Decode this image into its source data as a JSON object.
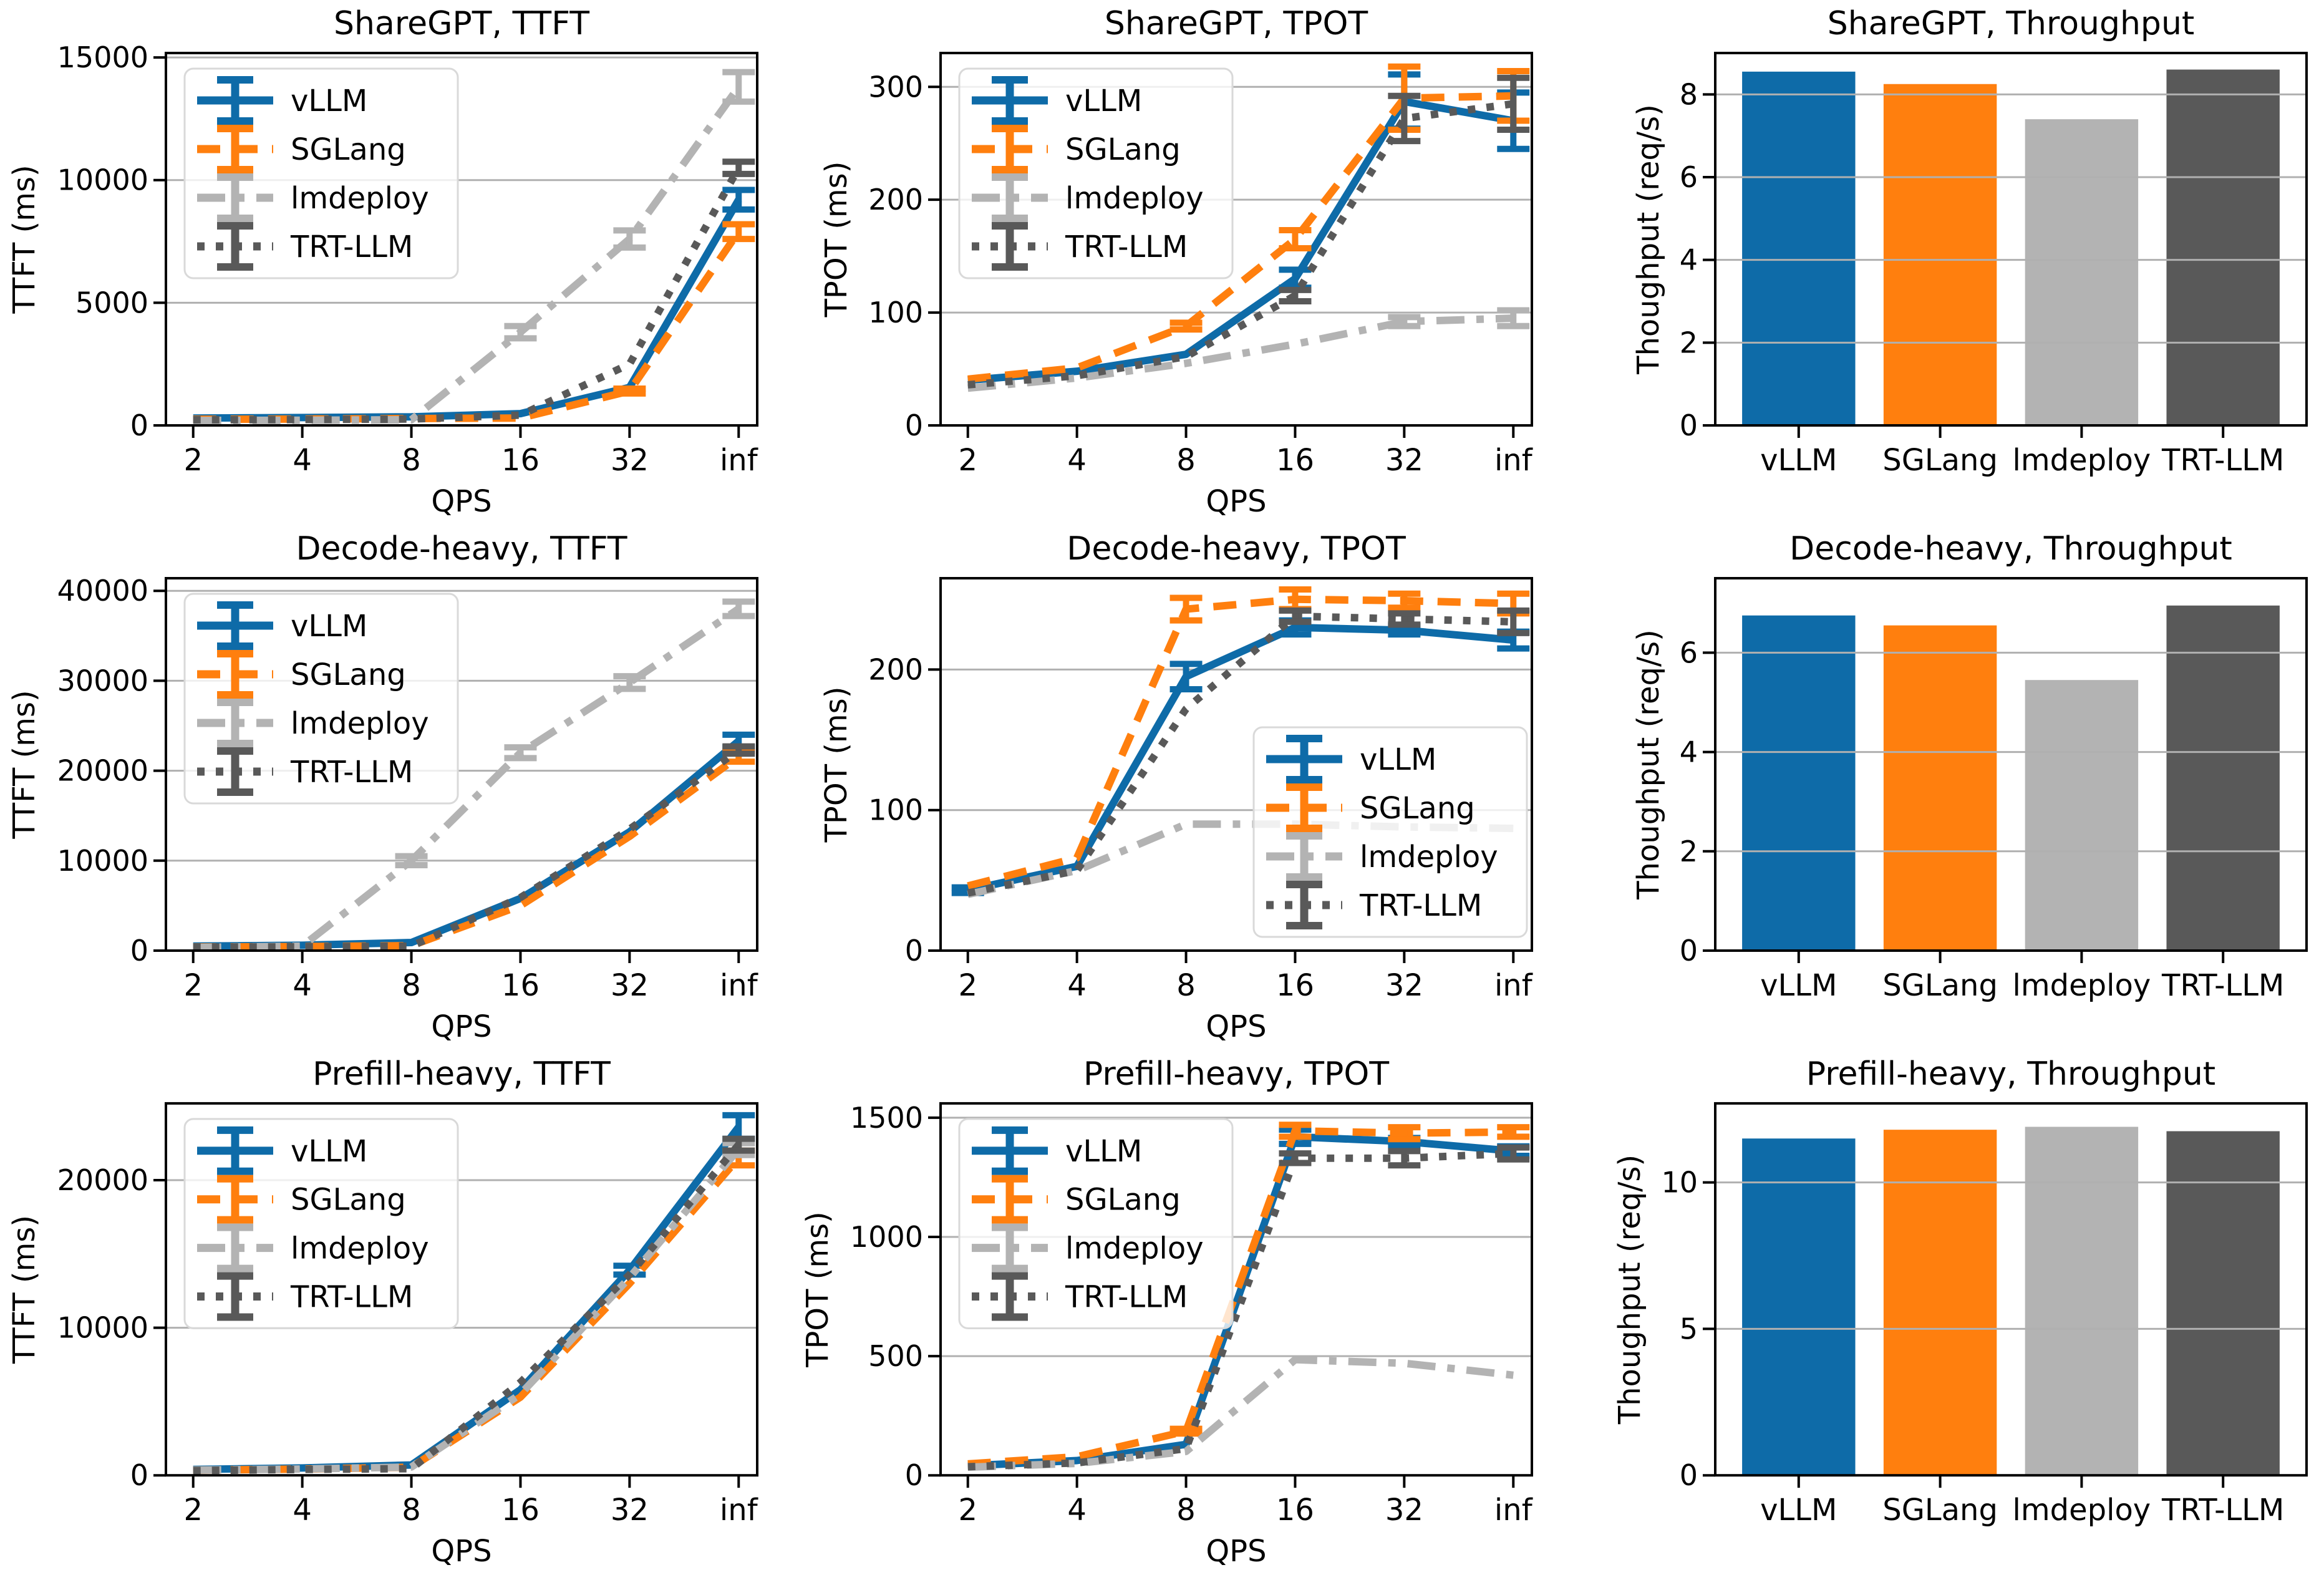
{
  "figure": {
    "background": "#ffffff",
    "grid_color": "#b0b0b0",
    "axis_color": "#000000",
    "legend_border_color": "#d9d9d9",
    "legend_fill": "#ffffff"
  },
  "frameworks": [
    {
      "name": "vLLM",
      "color": "#0e6ba8",
      "dash": "solid"
    },
    {
      "name": "SGLang",
      "color": "#ff7f0e",
      "dash": "dashed"
    },
    {
      "name": "lmdeploy",
      "color": "#b3b3b3",
      "dash": "dashdot"
    },
    {
      "name": "TRT-LLM",
      "color": "#595959",
      "dash": "dotted"
    }
  ],
  "chart_data": [
    {
      "id": "sharegpt-ttft",
      "type": "line",
      "title": "ShareGPT, TTFT",
      "xlabel": "QPS",
      "ylabel": "TTFT (ms)",
      "x_categories": [
        "2",
        "4",
        "8",
        "16",
        "32",
        "inf"
      ],
      "yticks": [
        0,
        5000,
        10000,
        15000
      ],
      "ylim": [
        0,
        15180
      ],
      "grid": true,
      "legend_loc": "upper-left",
      "series": [
        {
          "name": "vLLM",
          "color": "#0e6ba8",
          "dash": "solid",
          "values": [
            300,
            320,
            350,
            480,
            1550,
            9200
          ],
          "err": [
            0,
            0,
            0,
            0,
            0,
            400
          ]
        },
        {
          "name": "SGLang",
          "color": "#ff7f0e",
          "dash": "dashed",
          "values": [
            250,
            260,
            280,
            300,
            1400,
            7900
          ],
          "err": [
            0,
            0,
            0,
            0,
            100,
            300
          ]
        },
        {
          "name": "lmdeploy",
          "color": "#b3b3b3",
          "dash": "dashdot",
          "values": [
            200,
            210,
            230,
            3800,
            7600,
            13800
          ],
          "err": [
            0,
            0,
            0,
            250,
            350,
            600
          ]
        },
        {
          "name": "TRT-LLM",
          "color": "#595959",
          "dash": "dotted",
          "values": [
            230,
            240,
            260,
            420,
            2500,
            10500
          ],
          "err": [
            0,
            0,
            0,
            0,
            0,
            250
          ]
        }
      ]
    },
    {
      "id": "sharegpt-tpot",
      "type": "line",
      "title": "ShareGPT, TPOT",
      "xlabel": "QPS",
      "ylabel": "TPOT (ms)",
      "x_categories": [
        "2",
        "4",
        "8",
        "16",
        "32",
        "inf"
      ],
      "yticks": [
        0,
        100,
        200,
        300
      ],
      "ylim": [
        0,
        330
      ],
      "grid": true,
      "legend_loc": "upper-left",
      "series": [
        {
          "name": "vLLM",
          "color": "#0e6ba8",
          "dash": "solid",
          "values": [
            40,
            48,
            63,
            130,
            287,
            270
          ],
          "err": [
            0,
            0,
            0,
            8,
            24,
            25
          ]
        },
        {
          "name": "SGLang",
          "color": "#ff7f0e",
          "dash": "dashed",
          "values": [
            41,
            51,
            88,
            165,
            290,
            292
          ],
          "err": [
            0,
            0,
            3,
            8,
            28,
            22
          ]
        },
        {
          "name": "lmdeploy",
          "color": "#b3b3b3",
          "dash": "dashdot",
          "values": [
            33,
            42,
            55,
            72,
            92,
            95
          ],
          "err": [
            0,
            0,
            0,
            0,
            4,
            7
          ]
        },
        {
          "name": "TRT-LLM",
          "color": "#595959",
          "dash": "dotted",
          "values": [
            36,
            44,
            61,
            115,
            272,
            285
          ],
          "err": [
            0,
            0,
            0,
            5,
            20,
            23
          ]
        }
      ]
    },
    {
      "id": "sharegpt-throughput",
      "type": "bar",
      "title": "ShareGPT, Throughput",
      "ylabel": "Thoughput (req/s)",
      "categories": [
        "vLLM",
        "SGLang",
        "lmdeploy",
        "TRT-LLM"
      ],
      "values": [
        8.55,
        8.25,
        7.4,
        8.6
      ],
      "colors": [
        "#0e6ba8",
        "#ff7f0e",
        "#b3b3b3",
        "#595959"
      ],
      "yticks": [
        0,
        2,
        4,
        6,
        8
      ],
      "ylim": [
        0,
        9.0
      ],
      "grid": true
    },
    {
      "id": "decode-heavy-ttft",
      "type": "line",
      "title": "Decode-heavy, TTFT",
      "xlabel": "QPS",
      "ylabel": "TTFT (ms)",
      "x_categories": [
        "2",
        "4",
        "8",
        "16",
        "32",
        "inf"
      ],
      "yticks": [
        0,
        10000,
        20000,
        30000,
        40000
      ],
      "ylim": [
        0,
        41400
      ],
      "grid": true,
      "legend_loc": "upper-left",
      "series": [
        {
          "name": "vLLM",
          "color": "#0e6ba8",
          "dash": "solid",
          "values": [
            500,
            600,
            900,
            5800,
            13200,
            23300
          ],
          "err": [
            0,
            0,
            0,
            0,
            0,
            700
          ]
        },
        {
          "name": "SGLang",
          "color": "#ff7f0e",
          "dash": "dashed",
          "values": [
            400,
            450,
            550,
            5000,
            12700,
            21600
          ],
          "err": [
            0,
            0,
            0,
            0,
            0,
            600
          ]
        },
        {
          "name": "lmdeploy",
          "color": "#b3b3b3",
          "dash": "dashdot",
          "values": [
            350,
            500,
            10000,
            22000,
            29800,
            38000
          ],
          "err": [
            0,
            0,
            500,
            600,
            700,
            800
          ]
        },
        {
          "name": "TRT-LLM",
          "color": "#595959",
          "dash": "dotted",
          "values": [
            380,
            420,
            500,
            5900,
            13500,
            22300
          ],
          "err": [
            0,
            0,
            0,
            0,
            0,
            400
          ]
        }
      ]
    },
    {
      "id": "decode-heavy-tpot",
      "type": "line",
      "title": "Decode-heavy, TPOT",
      "xlabel": "QPS",
      "ylabel": "TPOT (ms)",
      "x_categories": [
        "2",
        "4",
        "8",
        "16",
        "32",
        "inf"
      ],
      "yticks": [
        0,
        100,
        200
      ],
      "ylim": [
        0,
        265
      ],
      "grid": true,
      "legend_loc": "lower-right",
      "series": [
        {
          "name": "vLLM",
          "color": "#0e6ba8",
          "dash": "solid",
          "values": [
            43,
            60,
            195,
            230,
            228,
            221
          ],
          "err": [
            2,
            0,
            9,
            5,
            3,
            6
          ]
        },
        {
          "name": "SGLang",
          "color": "#ff7f0e",
          "dash": "dashed",
          "values": [
            46,
            66,
            243,
            250,
            249,
            247
          ],
          "err": [
            0,
            0,
            8,
            7,
            5,
            7
          ]
        },
        {
          "name": "lmdeploy",
          "color": "#b3b3b3",
          "dash": "dashdot",
          "values": [
            40,
            57,
            90,
            90,
            88,
            87
          ],
          "err": [
            0,
            0,
            0,
            0,
            0,
            0
          ]
        },
        {
          "name": "TRT-LLM",
          "color": "#595959",
          "dash": "dotted",
          "values": [
            41,
            57,
            172,
            238,
            236,
            234
          ],
          "err": [
            0,
            0,
            0,
            4,
            4,
            8
          ]
        }
      ]
    },
    {
      "id": "decode-heavy-throughput",
      "type": "bar",
      "title": "Decode-heavy, Throughput",
      "ylabel": "Thoughput (req/s)",
      "categories": [
        "vLLM",
        "SGLang",
        "lmdeploy",
        "TRT-LLM"
      ],
      "values": [
        6.75,
        6.55,
        5.45,
        6.95
      ],
      "colors": [
        "#0e6ba8",
        "#ff7f0e",
        "#b3b3b3",
        "#595959"
      ],
      "yticks": [
        0,
        2,
        4,
        6
      ],
      "ylim": [
        0,
        7.5
      ],
      "grid": true
    },
    {
      "id": "prefill-heavy-ttft",
      "type": "line",
      "title": "Prefill-heavy, TTFT",
      "xlabel": "QPS",
      "ylabel": "TTFT (ms)",
      "x_categories": [
        "2",
        "4",
        "8",
        "16",
        "32",
        "inf"
      ],
      "yticks": [
        0,
        10000,
        20000
      ],
      "ylim": [
        0,
        25200
      ],
      "grid": true,
      "legend_loc": "upper-left",
      "series": [
        {
          "name": "vLLM",
          "color": "#0e6ba8",
          "dash": "solid",
          "values": [
            400,
            500,
            700,
            5800,
            13900,
            23600
          ],
          "err": [
            0,
            0,
            0,
            0,
            300,
            800
          ]
        },
        {
          "name": "SGLang",
          "color": "#ff7f0e",
          "dash": "dashed",
          "values": [
            350,
            420,
            550,
            5300,
            13000,
            21500
          ],
          "err": [
            0,
            0,
            0,
            0,
            0,
            500
          ]
        },
        {
          "name": "lmdeploy",
          "color": "#b3b3b3",
          "dash": "dashdot",
          "values": [
            350,
            430,
            560,
            5500,
            13400,
            22100
          ],
          "err": [
            0,
            0,
            0,
            0,
            0,
            400
          ]
        },
        {
          "name": "TRT-LLM",
          "color": "#595959",
          "dash": "dotted",
          "values": [
            320,
            400,
            450,
            6300,
            13600,
            22400
          ],
          "err": [
            0,
            0,
            0,
            0,
            0,
            400
          ]
        }
      ]
    },
    {
      "id": "prefill-heavy-tpot",
      "type": "line",
      "title": "Prefill-heavy, TPOT",
      "xlabel": "QPS",
      "ylabel": "TPOT (ms)",
      "x_categories": [
        "2",
        "4",
        "8",
        "16",
        "32",
        "inf"
      ],
      "yticks": [
        0,
        500,
        1000,
        1500
      ],
      "ylim": [
        0,
        1560
      ],
      "grid": true,
      "legend_loc": "upper-left",
      "series": [
        {
          "name": "vLLM",
          "color": "#0e6ba8",
          "dash": "solid",
          "values": [
            40,
            62,
            130,
            1420,
            1400,
            1360
          ],
          "err": [
            0,
            0,
            0,
            30,
            15,
            20
          ]
        },
        {
          "name": "SGLang",
          "color": "#ff7f0e",
          "dash": "dashed",
          "values": [
            48,
            78,
            185,
            1445,
            1435,
            1440
          ],
          "err": [
            0,
            0,
            10,
            25,
            25,
            20
          ]
        },
        {
          "name": "lmdeploy",
          "color": "#b3b3b3",
          "dash": "dashdot",
          "values": [
            34,
            50,
            100,
            485,
            470,
            420
          ],
          "err": [
            0,
            0,
            0,
            0,
            0,
            0
          ]
        },
        {
          "name": "TRT-LLM",
          "color": "#595959",
          "dash": "dotted",
          "values": [
            36,
            52,
            112,
            1330,
            1330,
            1350
          ],
          "err": [
            0,
            0,
            0,
            20,
            30,
            25
          ]
        }
      ]
    },
    {
      "id": "prefill-heavy-throughput",
      "type": "bar",
      "title": "Prefill-heavy, Throughput",
      "ylabel": "Thoughput (req/s)",
      "categories": [
        "vLLM",
        "SGLang",
        "lmdeploy",
        "TRT-LLM"
      ],
      "values": [
        11.5,
        11.8,
        11.9,
        11.75
      ],
      "colors": [
        "#0e6ba8",
        "#ff7f0e",
        "#b3b3b3",
        "#595959"
      ],
      "yticks": [
        0,
        5,
        10
      ],
      "ylim": [
        0,
        12.7
      ],
      "grid": true
    }
  ]
}
